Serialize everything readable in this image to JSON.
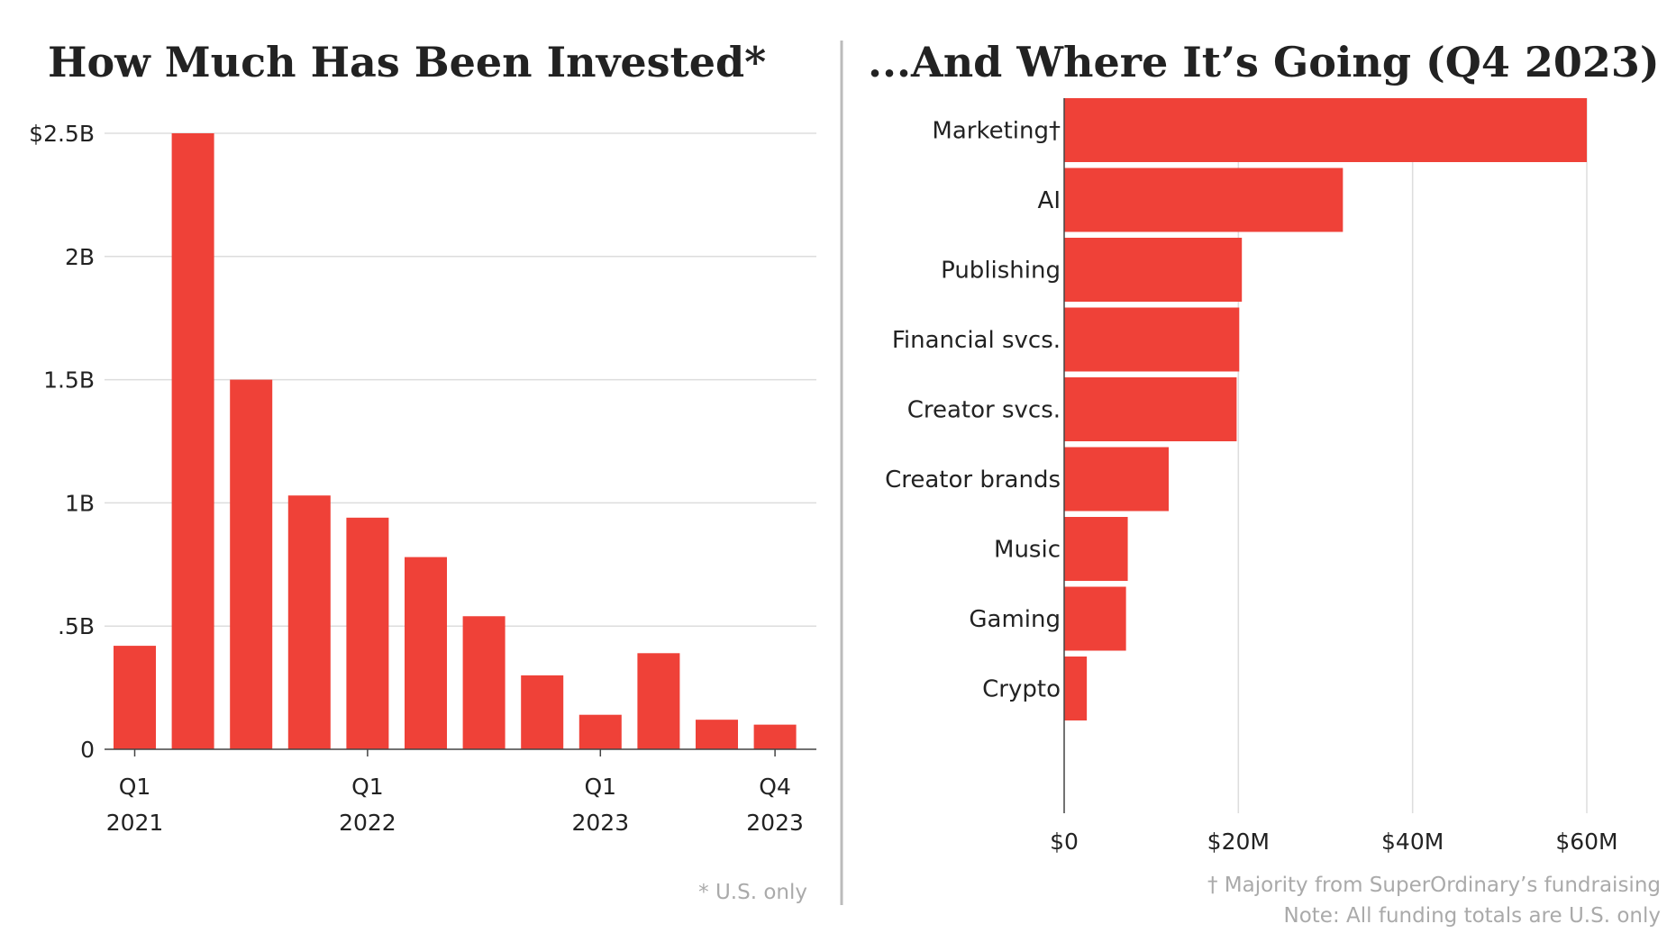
{
  "colors": {
    "bar": "#ef4138",
    "grid": "#dddddd",
    "divider": "#bbbbbb",
    "text": "#222222",
    "note": "#aaaaaa"
  },
  "chart_data": [
    {
      "type": "bar",
      "title": "How Much Has Been Invested*",
      "categories": [
        "Q1 2021",
        "Q2 2021",
        "Q3 2021",
        "Q4 2021",
        "Q1 2022",
        "Q2 2022",
        "Q3 2022",
        "Q4 2022",
        "Q1 2023",
        "Q2 2023",
        "Q3 2023",
        "Q4 2023"
      ],
      "values": [
        0.42,
        2.5,
        1.5,
        1.03,
        0.94,
        0.78,
        0.54,
        0.3,
        0.14,
        0.39,
        0.12,
        0.1
      ],
      "unit": "billions USD",
      "ylim": [
        0,
        2.5
      ],
      "yticks": [
        {
          "v": 0,
          "label": "0"
        },
        {
          "v": 0.5,
          "label": ".5B"
        },
        {
          "v": 1,
          "label": "1B"
        },
        {
          "v": 1.5,
          "label": "1.5B"
        },
        {
          "v": 2,
          "label": "2B"
        },
        {
          "v": 2.5,
          "label": "$2.5B"
        }
      ],
      "xticks": [
        {
          "index": 0,
          "q": "Q1",
          "year": "2021"
        },
        {
          "index": 4,
          "q": "Q1",
          "year": "2022"
        },
        {
          "index": 8,
          "q": "Q1",
          "year": "2023"
        },
        {
          "index": 11,
          "q": "Q4",
          "year": "2023"
        }
      ],
      "grid": true,
      "footnote": "* U.S. only"
    },
    {
      "type": "bar",
      "orientation": "horizontal",
      "title": "...And Where It’s Going (Q4 2023)",
      "categories": [
        "Marketing†",
        "AI",
        "Publishing",
        "Financial svcs.",
        "Creator svcs.",
        "Creator brands",
        "Music",
        "Gaming",
        "Crypto"
      ],
      "values": [
        60,
        32,
        20.4,
        20.1,
        19.8,
        12,
        7.3,
        7.1,
        2.6
      ],
      "unit": "millions USD",
      "xlim": [
        0,
        60
      ],
      "xticks": [
        {
          "v": 0,
          "label": "$0"
        },
        {
          "v": 20,
          "label": "$20M"
        },
        {
          "v": 40,
          "label": "$40M"
        },
        {
          "v": 60,
          "label": "$60M"
        }
      ],
      "grid": true,
      "footnotes": [
        "† Majority from SuperOrdinary’s fundraising",
        "Note: All funding totals are U.S. only"
      ]
    }
  ]
}
